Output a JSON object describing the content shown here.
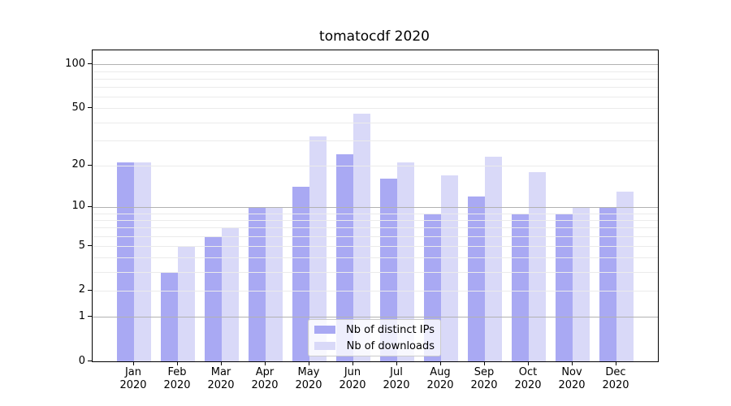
{
  "chart_data": {
    "type": "bar",
    "title": "tomatocdf 2020",
    "categories": [
      "Jan 2020",
      "Feb 2020",
      "Mar 2020",
      "Apr 2020",
      "May 2020",
      "Jun 2020",
      "Jul 2020",
      "Aug 2020",
      "Sep 2020",
      "Oct 2020",
      "Nov 2020",
      "Dec 2020"
    ],
    "series": [
      {
        "name": "Nb of distinct IPs",
        "color": "#a9a9f3",
        "values": [
          21,
          3,
          6,
          10,
          14,
          24,
          16,
          9,
          12,
          9,
          9,
          10
        ]
      },
      {
        "name": "Nb of downloads",
        "color": "#d9d9f8",
        "values": [
          21,
          5,
          7,
          10,
          32,
          46,
          21,
          17,
          23,
          18,
          10,
          13
        ]
      }
    ],
    "xlabel": "",
    "ylabel": "",
    "yscale": "log1p",
    "ylim": [
      0,
      124.5
    ],
    "ytick_labels": [
      "0",
      "1",
      "2",
      "5",
      "10",
      "20",
      "50",
      "100"
    ],
    "ytick_values": [
      0,
      1,
      2,
      5,
      10,
      20,
      50,
      100
    ],
    "major_gridline_values": [
      1,
      10,
      100
    ],
    "minor_gridline_values": [
      2,
      3,
      4,
      5,
      6,
      7,
      8,
      9,
      20,
      30,
      40,
      50,
      60,
      70,
      80,
      90
    ],
    "grid": "on",
    "legend_position": "lower center",
    "colors": {
      "series_1": "#a9a9f3",
      "series_2": "#d9d9f8",
      "major_grid": "#b2b2b2",
      "minor_grid": "#ebebeb",
      "spine": "#000000",
      "text": "#000000"
    }
  }
}
